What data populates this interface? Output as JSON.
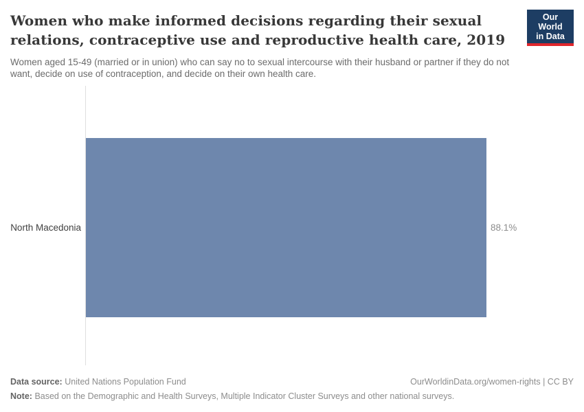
{
  "header": {
    "title_lines": [
      "Women who make informed decisions regarding their sexual",
      "relations, contraceptive use and reproductive health care, 2019"
    ],
    "subtitle_lines": [
      "Women aged 15-49 (married or in union) who can say no to sexual intercourse with their husband or partner if they do not",
      "want, decide on use of contraception, and decide on their own health care."
    ]
  },
  "logo": {
    "line1": "Our World",
    "line2": "in Data",
    "bg_color": "#1d3d63",
    "accent_color": "#e0262c"
  },
  "chart_data": {
    "type": "bar",
    "orientation": "horizontal",
    "title": "Women who make informed decisions regarding their sexual relations, contraceptive use and reproductive health care, 2019",
    "subtitle": "Women aged 15-49 (married or in union) who can say no to sexual intercourse with their husband or partner if they do not want, decide on use of contraception, and decide on their own health care.",
    "categories": [
      "North Macedonia"
    ],
    "values": [
      88.1
    ],
    "value_labels": [
      "88.1%"
    ],
    "unit": "%",
    "axis_max": 88.1,
    "bar_color": "#6e87ad",
    "grid": false,
    "legend": false
  },
  "footer": {
    "source_label": "Data source:",
    "source_value": "United Nations Population Fund",
    "attribution": "OurWorldinData.org/women-rights | CC BY",
    "note_label": "Note:",
    "note_value": "Based on the Demographic and Health Surveys, Multiple Indicator Cluster Surveys and other national surveys."
  }
}
